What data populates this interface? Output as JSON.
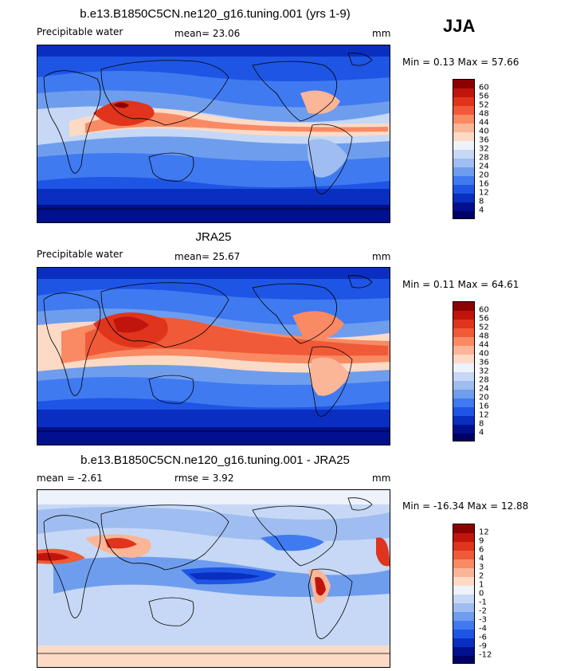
{
  "season": "JJA",
  "panels": [
    {
      "title": "b.e13.B1850C5CN.ne120_g16.tuning.001 (yrs 1-9)",
      "left_label": "Precipitable water",
      "stat1": "mean=   23.06",
      "stat2": "",
      "units": "mm",
      "minmax": "Min =   0.13 Max =  57.66",
      "levels": [
        "60",
        "56",
        "52",
        "48",
        "44",
        "40",
        "36",
        "32",
        "28",
        "24",
        "20",
        "16",
        "12",
        "8",
        "4"
      ],
      "colors": [
        "#8b0000",
        "#c0150c",
        "#e0341c",
        "#f05a38",
        "#f98a63",
        "#fbb597",
        "#fddac6",
        "#eef2fb",
        "#c6d8f5",
        "#9fbdf0",
        "#6f9ded",
        "#3f7af0",
        "#1e55e4",
        "#0a2fc0",
        "#00108e",
        "#000066"
      ]
    },
    {
      "title": "JRA25",
      "left_label": "Precipitable water",
      "stat1": "mean=   25.67",
      "stat2": "",
      "units": "mm",
      "minmax": "Min =   0.11 Max =  64.61",
      "levels": [
        "60",
        "56",
        "52",
        "48",
        "44",
        "40",
        "36",
        "32",
        "28",
        "24",
        "20",
        "16",
        "12",
        "8",
        "4"
      ],
      "colors": [
        "#8b0000",
        "#c0150c",
        "#e0341c",
        "#f05a38",
        "#f98a63",
        "#fbb597",
        "#fddac6",
        "#eef2fb",
        "#c6d8f5",
        "#9fbdf0",
        "#6f9ded",
        "#3f7af0",
        "#1e55e4",
        "#0a2fc0",
        "#00108e",
        "#000066"
      ]
    },
    {
      "title": "b.e13.B1850C5CN.ne120_g16.tuning.001 - JRA25",
      "left_label": "mean =   -2.61",
      "stat1": "rmse =   3.92",
      "stat2": "",
      "units": "mm",
      "minmax": "Min = -16.34 Max =  12.88",
      "levels": [
        "12",
        "9",
        "6",
        "4",
        "3",
        "2",
        "1",
        "0",
        "-1",
        "-2",
        "-3",
        "-4",
        "-6",
        "-9",
        "-12"
      ],
      "colors": [
        "#8b0000",
        "#c0150c",
        "#e0341c",
        "#f05a38",
        "#f98a63",
        "#fbb597",
        "#fddac6",
        "#eef2fb",
        "#c6d8f5",
        "#9fbdf0",
        "#6f9ded",
        "#3f7af0",
        "#1e55e4",
        "#0a2fc0",
        "#00108e",
        "#000066"
      ]
    }
  ]
}
